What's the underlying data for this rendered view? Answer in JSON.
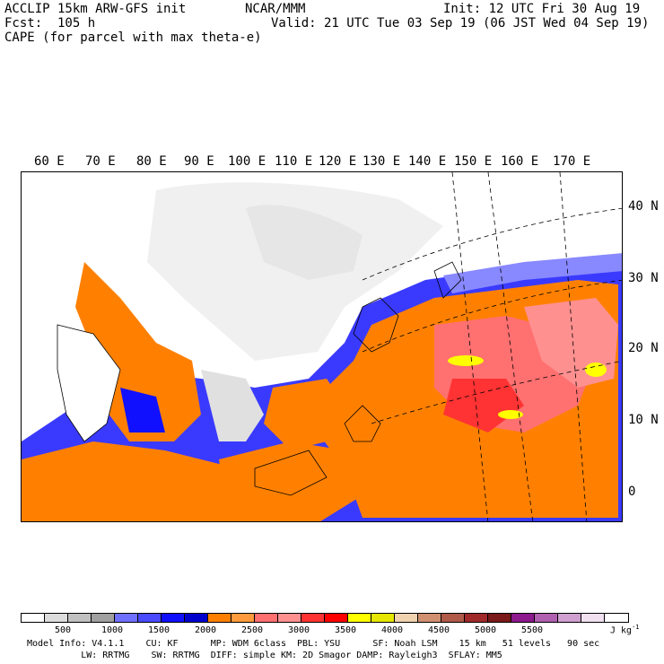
{
  "header": {
    "model_line": "ACCLIP 15km ARW-GFS init",
    "org": "NCAR/MMM",
    "init": "Init: 12 UTC Fri 30 Aug 19",
    "fcst": "Fcst:  105 h",
    "valid": "Valid: 21 UTC Tue 03 Sep 19 (06 JST Wed 04 Sep 19)",
    "field": "CAPE (for parcel with max theta-e)"
  },
  "map": {
    "lon_labels": [
      "60 E",
      "70 E",
      "80 E",
      "90 E",
      "100 E",
      "110 E",
      "120 E",
      "130 E",
      "140 E",
      "150 E",
      "160 E",
      "170 E"
    ],
    "lat_labels": [
      "40 N",
      "30 N",
      "20 N",
      "10 N",
      "0"
    ]
  },
  "colorbar": {
    "colors": [
      "#ffffff",
      "#dcdcdc",
      "#c0c0c0",
      "#a0a0a0",
      "#7070ff",
      "#4a4aff",
      "#1010ff",
      "#0000cc",
      "#ff8000",
      "#ff9b3c",
      "#ff7070",
      "#ff9090",
      "#ff3333",
      "#ff0000",
      "#ffff00",
      "#e6e600",
      "#f0d2b0",
      "#d09070",
      "#b05a4a",
      "#a02a2a",
      "#7a1a1a",
      "#8c1a8c",
      "#b060b0",
      "#d0a0d0",
      "#f0e0f0",
      "#ffffff"
    ],
    "labels": [
      "500",
      "1000",
      "1500",
      "2000",
      "2500",
      "3000",
      "3500",
      "4000",
      "4500",
      "5000",
      "5500"
    ],
    "units": "J kg",
    "units_sup": "-1"
  },
  "footer": {
    "line1": "Model Info: V4.1.1    CU: KF      MP: WDM 6class  PBL: YSU      SF: Noah LSM    15 km   51 levels   90 sec",
    "line2": "          LW: RRTMG    SW: RRTMG  DIFF: simple KM: 2D Smagor DAMP: Rayleigh3  SFLAY: MM5"
  }
}
